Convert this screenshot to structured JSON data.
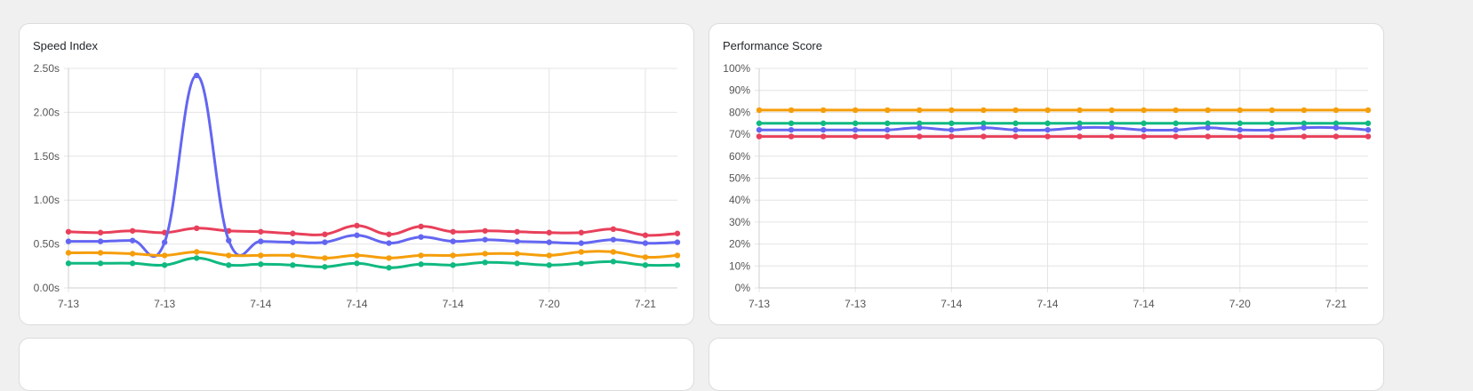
{
  "cards": [
    {
      "title": "Speed Index"
    },
    {
      "title": "Performance Score"
    }
  ],
  "chart_data": [
    {
      "type": "line",
      "title": "Speed Index",
      "y_unit": "s",
      "ylim": [
        0,
        2.5
      ],
      "y_ticks": [
        "0.00s",
        "0.50s",
        "1.00s",
        "1.50s",
        "2.00s",
        "2.50s"
      ],
      "x_tick_labels": [
        "7-13",
        "7-13",
        "7-14",
        "7-14",
        "7-14",
        "7-20",
        "7-21"
      ],
      "grid": true,
      "series": [
        {
          "color": "#e8405a",
          "values": [
            0.64,
            0.63,
            0.65,
            0.63,
            0.68,
            0.65,
            0.64,
            0.62,
            0.61,
            0.71,
            0.61,
            0.7,
            0.64,
            0.65,
            0.64,
            0.63,
            0.63,
            0.67,
            0.6,
            0.62
          ]
        },
        {
          "color": "#6366f1",
          "values": [
            0.53,
            0.53,
            0.54,
            0.52,
            2.42,
            0.54,
            0.53,
            0.52,
            0.52,
            0.6,
            0.51,
            0.58,
            0.53,
            0.55,
            0.53,
            0.52,
            0.51,
            0.55,
            0.51,
            0.52
          ]
        },
        {
          "color": "#f59e0b",
          "values": [
            0.4,
            0.4,
            0.39,
            0.37,
            0.41,
            0.37,
            0.37,
            0.37,
            0.34,
            0.37,
            0.34,
            0.37,
            0.37,
            0.39,
            0.39,
            0.37,
            0.41,
            0.41,
            0.35,
            0.37
          ]
        },
        {
          "color": "#10b981",
          "values": [
            0.28,
            0.28,
            0.28,
            0.26,
            0.34,
            0.26,
            0.27,
            0.26,
            0.24,
            0.28,
            0.23,
            0.27,
            0.26,
            0.29,
            0.28,
            0.26,
            0.28,
            0.3,
            0.26,
            0.26
          ]
        }
      ]
    },
    {
      "type": "line",
      "title": "Performance Score",
      "y_unit": "%",
      "ylim": [
        0,
        100
      ],
      "y_ticks": [
        "0%",
        "10%",
        "20%",
        "30%",
        "40%",
        "50%",
        "60%",
        "70%",
        "80%",
        "90%",
        "100%"
      ],
      "x_tick_labels": [
        "7-13",
        "7-13",
        "7-14",
        "7-14",
        "7-14",
        "7-20",
        "7-21"
      ],
      "grid": true,
      "series": [
        {
          "color": "#f59e0b",
          "values": [
            81,
            81,
            81,
            81,
            81,
            81,
            81,
            81,
            81,
            81,
            81,
            81,
            81,
            81,
            81,
            81,
            81,
            81,
            81,
            81
          ]
        },
        {
          "color": "#10b981",
          "values": [
            75,
            75,
            75,
            75,
            75,
            75,
            75,
            75,
            75,
            75,
            75,
            75,
            75,
            75,
            75,
            75,
            75,
            75,
            75,
            75
          ]
        },
        {
          "color": "#6366f1",
          "values": [
            72,
            72,
            72,
            72,
            72,
            73,
            72,
            73,
            72,
            72,
            73,
            73,
            72,
            72,
            73,
            72,
            72,
            73,
            73,
            72
          ]
        },
        {
          "color": "#e8405a",
          "values": [
            69,
            69,
            69,
            69,
            69,
            69,
            69,
            69,
            69,
            69,
            69,
            69,
            69,
            69,
            69,
            69,
            69,
            69,
            69,
            69
          ]
        }
      ]
    }
  ]
}
